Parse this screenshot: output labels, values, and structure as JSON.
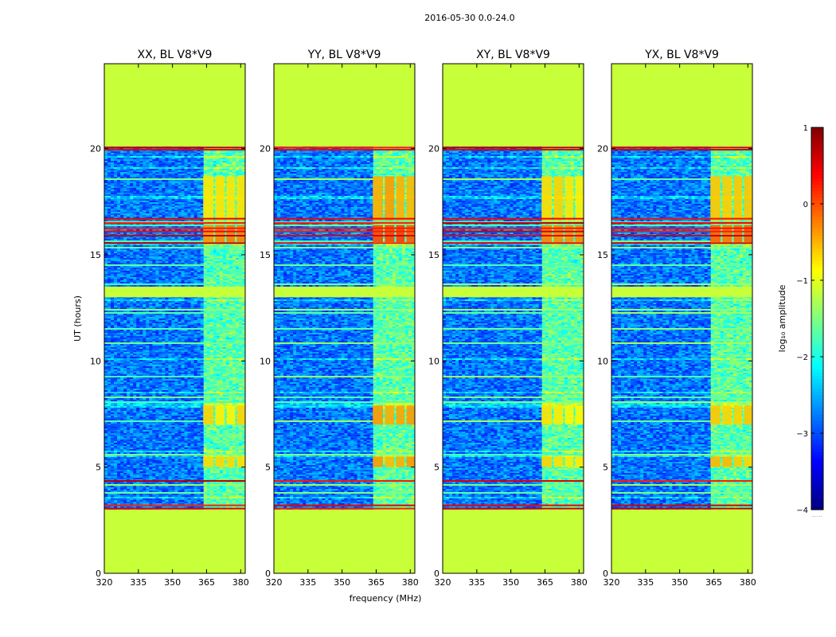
{
  "figure_title": "2016-05-30 0.0-24.0",
  "chart_data": {
    "type": "heatmap",
    "colormap": "jet",
    "xlabel": "frequency (MHz)",
    "ylabel": "UT (hours)",
    "xlim": [
      320,
      382
    ],
    "ylim": [
      0,
      24
    ],
    "xticks": [
      320,
      335,
      350,
      365,
      380
    ],
    "yticks": [
      0,
      5,
      10,
      15,
      20
    ],
    "colorbar": {
      "label": "log₁₀ amplitude",
      "range": [
        -4,
        1
      ],
      "ticks": [
        -4,
        -3,
        -2,
        -1,
        0,
        1
      ],
      "tick_labels": [
        "−4",
        "−3",
        "−2",
        "−1",
        "0",
        "1"
      ],
      "note": "......"
    },
    "fill_value": -1.15,
    "background_range": [
      -3.2,
      -2.4
    ],
    "observed_hours": [
      3.0,
      20.1
    ],
    "gap_hours": [
      13.0,
      13.5
    ],
    "gap_value": -1.15,
    "rfi_band_mhz": [
      363,
      380
    ],
    "rfi_channels_mhz": [
      [
        363.5,
        368
      ],
      [
        368.8,
        373
      ],
      [
        373.8,
        377.5
      ],
      [
        378.3,
        382
      ]
    ],
    "hot_line_hours": [
      3.05,
      3.2,
      4.35,
      15.55,
      15.9,
      16.1,
      16.25,
      16.5,
      16.7,
      19.95,
      20.05
    ],
    "panels": [
      {
        "title": "XX, BL V8*V9",
        "rfi_boost": 0
      },
      {
        "title": "YY, BL V8*V9",
        "rfi_boost": 0.3
      },
      {
        "title": "XY, BL V8*V9",
        "rfi_boost": 0
      },
      {
        "title": "YX, BL V8*V9",
        "rfi_boost": 0.15
      }
    ]
  }
}
